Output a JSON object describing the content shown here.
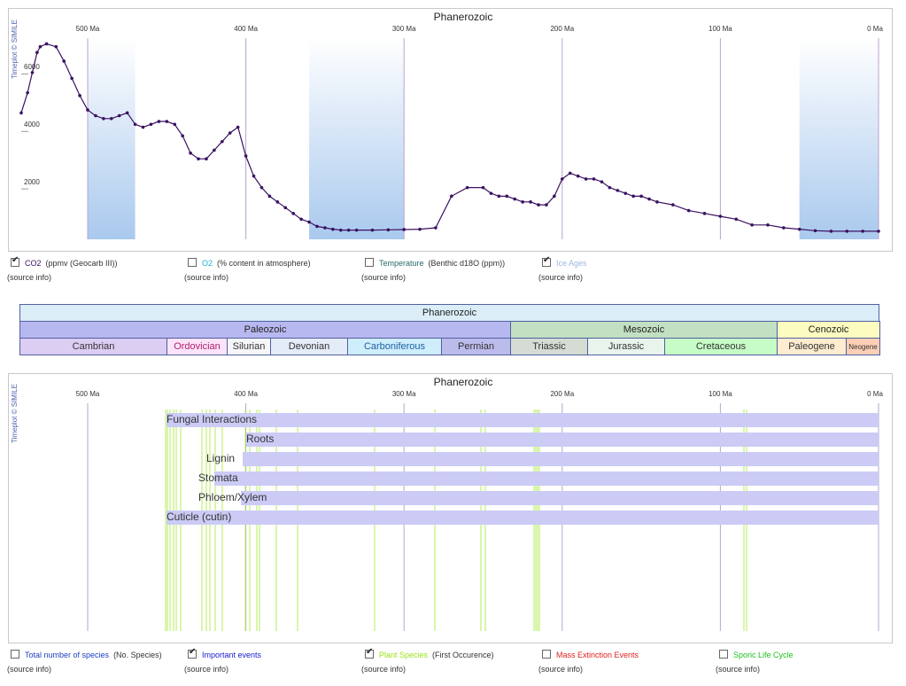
{
  "top_plot": {
    "title": "Phanerozoic",
    "credit": "Timeplot © SIMILE",
    "x_ticks": [
      "500 Ma",
      "400 Ma",
      "300 Ma",
      "200 Ma",
      "100 Ma",
      "0 Ma"
    ],
    "y_ticks": [
      "6000",
      "4000",
      "2000"
    ],
    "legend": [
      {
        "name": "CO2",
        "desc": "(ppmv (Geocarb III))",
        "checked": true,
        "color": "#3a1160",
        "source": "(source info)"
      },
      {
        "name": "O2",
        "desc": "(% content in atmosphere)",
        "checked": false,
        "color": "#19b6d9",
        "source": "(source info)"
      },
      {
        "name": "Temperature",
        "desc": "(Benthic d18O (ppm))",
        "checked": false,
        "color": "#2a6a6a",
        "source": "(source info)"
      },
      {
        "name": "Ice Ages",
        "desc": "",
        "checked": true,
        "color": "#9fb6e0",
        "source": "(source info)"
      }
    ]
  },
  "geo_table": {
    "eon": "Phanerozoic",
    "eras": [
      {
        "name": "Paleozoic",
        "color": "#b8b8f0"
      },
      {
        "name": "Mesozoic",
        "color": "#c2e0c2"
      },
      {
        "name": "Cenozoic",
        "color": "#fdfcc0"
      }
    ],
    "periods": [
      {
        "name": "Cambrian",
        "color": "#dccdf3",
        "text": "#333"
      },
      {
        "name": "Ordovician",
        "color": "#fbe4fb",
        "text": "#b0206c"
      },
      {
        "name": "Silurian",
        "color": "#f6f6fa",
        "text": "#333"
      },
      {
        "name": "Devonian",
        "color": "#e4ecf8",
        "text": "#333"
      },
      {
        "name": "Carboniferous",
        "color": "#cfeefc",
        "text": "#2060a0"
      },
      {
        "name": "Permian",
        "color": "#bcbcec",
        "text": "#333"
      },
      {
        "name": "Triassic",
        "color": "#d4dcd4",
        "text": "#333"
      },
      {
        "name": "Jurassic",
        "color": "#e8f4ec",
        "text": "#333"
      },
      {
        "name": "Cretaceous",
        "color": "#c6fcc6",
        "text": "#333"
      },
      {
        "name": "Paleogene",
        "color": "#fdeccf",
        "text": "#333"
      },
      {
        "name": "Neogene",
        "color": "#fccfb6",
        "text": "#333"
      }
    ]
  },
  "bottom_plot": {
    "title": "Phanerozoic",
    "credit": "Timeplot © SIMILE",
    "x_ticks": [
      "500 Ma",
      "400 Ma",
      "300 Ma",
      "200 Ma",
      "100 Ma",
      "0 Ma"
    ],
    "events": [
      "Fungal Interactions",
      "Roots",
      "Lignin",
      "Stomata",
      "Phloem/Xylem",
      "Cuticle (cutin)"
    ],
    "legend": [
      {
        "name": "Total number of species",
        "desc": "(No. Species)",
        "checked": false,
        "color": "#2040c0",
        "source": "(source info)"
      },
      {
        "name": "Important events",
        "desc": "",
        "checked": true,
        "color": "#1a1ad0",
        "source": "(source info)"
      },
      {
        "name": "Plant Species",
        "desc": "(First Occurence)",
        "checked": true,
        "color": "#9be21a",
        "source": "(source info)"
      },
      {
        "name": "Mass Extinction Events",
        "desc": "",
        "checked": false,
        "color": "#e02020",
        "source": "(source info)"
      },
      {
        "name": "Sporic Life Cycle",
        "desc": "",
        "checked": false,
        "color": "#20c020",
        "source": "(source info)"
      }
    ]
  },
  "chart_data": [
    {
      "type": "line",
      "title": "Phanerozoic",
      "xlabel": "",
      "ylabel": "",
      "xlim": [
        542,
        0
      ],
      "ylim": [
        0,
        7000
      ],
      "grid": true,
      "series": [
        {
          "name": "CO2",
          "color": "#3a1160",
          "x": [
            542,
            538,
            535,
            532,
            530,
            526,
            520,
            515,
            510,
            505,
            500,
            495,
            490,
            485,
            480,
            475,
            470,
            465,
            460,
            455,
            450,
            445,
            440,
            435,
            430,
            425,
            420,
            415,
            410,
            405,
            400,
            395,
            390,
            385,
            380,
            375,
            370,
            365,
            360,
            355,
            350,
            345,
            340,
            335,
            330,
            320,
            310,
            300,
            290,
            280,
            270,
            260,
            250,
            245,
            240,
            235,
            230,
            225,
            220,
            215,
            210,
            205,
            200,
            195,
            190,
            185,
            180,
            175,
            170,
            165,
            160,
            155,
            150,
            145,
            140,
            130,
            120,
            110,
            100,
            90,
            80,
            70,
            60,
            50,
            40,
            30,
            20,
            10,
            0
          ],
          "y": [
            4400,
            5100,
            5800,
            6500,
            6700,
            6800,
            6700,
            6200,
            5600,
            5000,
            4500,
            4300,
            4200,
            4200,
            4300,
            4400,
            4000,
            3900,
            4000,
            4100,
            4100,
            4000,
            3600,
            3000,
            2800,
            2800,
            3100,
            3400,
            3700,
            3900,
            2900,
            2200,
            1800,
            1500,
            1300,
            1100,
            900,
            700,
            600,
            450,
            400,
            350,
            320,
            320,
            320,
            320,
            330,
            340,
            350,
            400,
            1500,
            1800,
            1800,
            1600,
            1500,
            1500,
            1400,
            1300,
            1300,
            1200,
            1200,
            1500,
            2100,
            2300,
            2200,
            2100,
            2100,
            2000,
            1800,
            1700,
            1600,
            1500,
            1500,
            1400,
            1300,
            1200,
            1000,
            900,
            800,
            700,
            500,
            500,
            400,
            350,
            300,
            280,
            280,
            280,
            280
          ]
        }
      ],
      "shaded_bands": [
        [
          500,
          470
        ],
        [
          360,
          300
        ],
        [
          50,
          0
        ]
      ]
    }
  ]
}
